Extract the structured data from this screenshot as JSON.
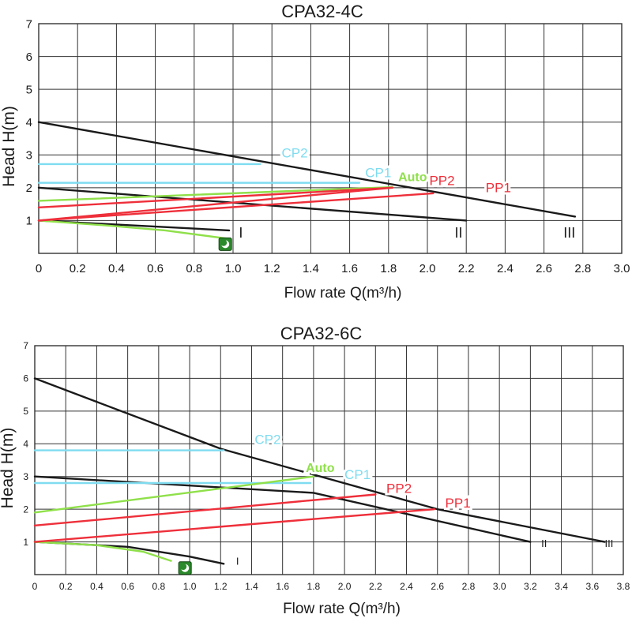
{
  "colors": {
    "black": "#1a1a1a",
    "grid": "#333333",
    "cp": "#7fdcf0",
    "auto": "#8fe04a",
    "pp": "#ee2f3a",
    "icon_bg": "#2b8a2b"
  },
  "chart_data": [
    {
      "type": "line",
      "title": "CPA32-4C",
      "xlabel": "Flow rate Q(m³/h)",
      "ylabel": "Head H(m)",
      "xlim": [
        0,
        3.0
      ],
      "ylim": [
        0,
        7
      ],
      "xticks": [
        "0",
        "0.2",
        "0.4",
        "0.6",
        "0.8",
        "1.0",
        "1.2",
        "1.4",
        "1.6",
        "1.8",
        "2.0",
        "2.2",
        "2.4",
        "2.6",
        "2.8",
        "3.0"
      ],
      "yticks": [
        "1",
        "2",
        "3",
        "4",
        "5",
        "6",
        "7"
      ],
      "grid": true,
      "series": [
        {
          "name": "III",
          "kind": "black",
          "points": [
            [
              0,
              4.0
            ],
            [
              2.76,
              1.12
            ]
          ]
        },
        {
          "name": "II",
          "kind": "black",
          "points": [
            [
              0,
              2.0
            ],
            [
              2.2,
              1.0
            ]
          ]
        },
        {
          "name": "I",
          "kind": "black",
          "points": [
            [
              0,
              1.0
            ],
            [
              0.98,
              0.7
            ]
          ]
        },
        {
          "name": "CP2",
          "kind": "cp",
          "points": [
            [
              0,
              2.72
            ],
            [
              1.14,
              2.72
            ]
          ]
        },
        {
          "name": "CP1",
          "kind": "cp",
          "points": [
            [
              0,
              2.15
            ],
            [
              1.65,
              2.15
            ]
          ]
        },
        {
          "name": "Auto",
          "kind": "auto",
          "points": [
            [
              0,
              1.6
            ],
            [
              1.82,
              2.02
            ]
          ]
        },
        {
          "name": "",
          "kind": "auto",
          "points": [
            [
              0,
              1.0
            ],
            [
              0.35,
              0.85
            ],
            [
              0.65,
              0.7
            ],
            [
              0.97,
              0.45
            ]
          ]
        },
        {
          "name": "PP2",
          "kind": "pp",
          "points": [
            [
              0,
              1.0
            ],
            [
              1.82,
              2.0
            ]
          ]
        },
        {
          "name": "PP2",
          "kind": "pp",
          "points": [
            [
              0,
              1.4
            ],
            [
              1.82,
              2.0
            ]
          ]
        },
        {
          "name": "PP1",
          "kind": "pp",
          "points": [
            [
              0,
              1.0
            ],
            [
              2.03,
              1.83
            ]
          ]
        }
      ],
      "labels": [
        {
          "text": "CP2",
          "kind": "cp",
          "x": 1.25,
          "y": 2.92
        },
        {
          "text": "CP1",
          "kind": "cp",
          "x": 1.68,
          "y": 2.32
        },
        {
          "text": "Auto",
          "kind": "auto",
          "x": 1.85,
          "y": 2.2,
          "bold": true
        },
        {
          "text": "PP2",
          "kind": "pp",
          "x": 2.01,
          "y": 2.08
        },
        {
          "text": "PP1",
          "kind": "pp",
          "x": 2.3,
          "y": 1.86
        },
        {
          "text": "I",
          "kind": "black",
          "x": 1.03,
          "y": 0.48
        },
        {
          "text": "II",
          "kind": "black",
          "x": 2.14,
          "y": 0.48
        },
        {
          "text": "III",
          "kind": "black",
          "x": 2.7,
          "y": 0.48
        }
      ],
      "night_icon": {
        "x": 0.96,
        "y": 0.28
      }
    },
    {
      "type": "line",
      "title": "CPA32-6C",
      "xlabel": "Flow rate Q(m³/h)",
      "ylabel": "Head H(m)",
      "xlim": [
        0,
        3.8
      ],
      "ylim": [
        0,
        7
      ],
      "xticks": [
        "0",
        "0.2",
        "0.4",
        "0.6",
        "0.8",
        "1.0",
        "1.2",
        "1.4",
        "1.6",
        "1.8",
        "2.0",
        "2.2",
        "2.4",
        "2.6",
        "2.8",
        "3.0",
        "3.2",
        "3.4",
        "3.6",
        "3.8"
      ],
      "yticks": [
        "1",
        "2",
        "3",
        "4",
        "5",
        "6",
        "7"
      ],
      "grid": true,
      "series": [
        {
          "name": "III",
          "kind": "black",
          "points": [
            [
              0,
              6.0
            ],
            [
              1.2,
              3.85
            ],
            [
              2.6,
              2.0
            ],
            [
              3.68,
              1.0
            ]
          ]
        },
        {
          "name": "II",
          "kind": "black",
          "points": [
            [
              0,
              3.0
            ],
            [
              1.8,
              2.5
            ],
            [
              3.2,
              1.0
            ]
          ]
        },
        {
          "name": "I",
          "kind": "black",
          "points": [
            [
              0,
              1.0
            ],
            [
              0.6,
              0.85
            ],
            [
              1.0,
              0.55
            ],
            [
              1.22,
              0.33
            ]
          ]
        },
        {
          "name": "CP2",
          "kind": "cp",
          "points": [
            [
              0,
              3.8
            ],
            [
              1.22,
              3.8
            ]
          ]
        },
        {
          "name": "CP1",
          "kind": "cp",
          "points": [
            [
              0,
              2.8
            ],
            [
              1.78,
              2.8
            ]
          ]
        },
        {
          "name": "Auto",
          "kind": "auto",
          "points": [
            [
              0,
              1.9
            ],
            [
              1.8,
              3.0
            ]
          ]
        },
        {
          "name": "",
          "kind": "auto",
          "points": [
            [
              0,
              1.0
            ],
            [
              0.4,
              0.9
            ],
            [
              0.7,
              0.7
            ],
            [
              0.88,
              0.42
            ]
          ]
        },
        {
          "name": "PP2",
          "kind": "pp",
          "points": [
            [
              0,
              1.5
            ],
            [
              2.2,
              2.45
            ]
          ]
        },
        {
          "name": "PP1",
          "kind": "pp",
          "points": [
            [
              0,
              1.0
            ],
            [
              2.58,
              2.0
            ]
          ]
        }
      ],
      "labels": [
        {
          "text": "CP2",
          "kind": "cp",
          "x": 1.42,
          "y": 4.0
        },
        {
          "text": "Auto",
          "kind": "auto",
          "x": 1.75,
          "y": 3.14,
          "bold": true
        },
        {
          "text": "CP1",
          "kind": "cp",
          "x": 2.0,
          "y": 2.92
        },
        {
          "text": "PP2",
          "kind": "pp",
          "x": 2.27,
          "y": 2.5
        },
        {
          "text": "PP1",
          "kind": "pp",
          "x": 2.65,
          "y": 2.05
        },
        {
          "text": "I",
          "kind": "black",
          "x": 1.3,
          "y": 0.3
        },
        {
          "text": "II",
          "kind": "black",
          "x": 3.27,
          "y": 0.85
        },
        {
          "text": "III",
          "kind": "black",
          "x": 3.68,
          "y": 0.85
        }
      ],
      "night_icon": {
        "x": 0.97,
        "y": 0.2
      }
    }
  ]
}
